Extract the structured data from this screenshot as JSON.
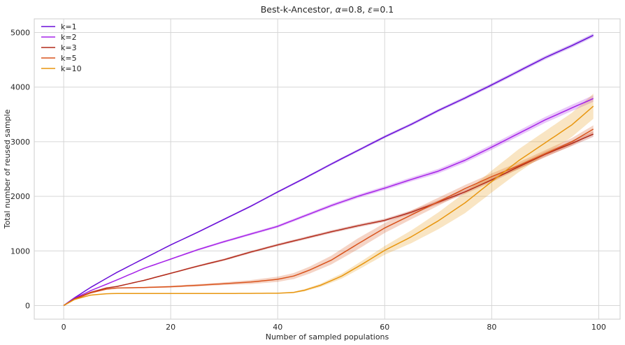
{
  "chart_data": {
    "type": "line",
    "title": "Best-k-Ancestor, α=0.8, ε=0.1",
    "title_parts": {
      "prefix": "Best-k-Ancestor, ",
      "alpha_symbol": "α",
      "alpha_value": "=0.8, ",
      "eps_symbol": "ε",
      "eps_value": "=0.1"
    },
    "xlabel": "Number of sampled populations",
    "ylabel": "Total number of reused sample",
    "xlim": [
      -5.5,
      104
    ],
    "ylim": [
      -250,
      5250
    ],
    "xticks": [
      0,
      20,
      40,
      60,
      80,
      100
    ],
    "yticks": [
      0,
      1000,
      2000,
      3000,
      4000,
      5000
    ],
    "grid": true,
    "legend_position": "top-left",
    "series": [
      {
        "name": "k=1",
        "color": "#6a0fd8",
        "points": [
          [
            0,
            0
          ],
          [
            2,
            140
          ],
          [
            5,
            330
          ],
          [
            10,
            610
          ],
          [
            15,
            860
          ],
          [
            20,
            1110
          ],
          [
            25,
            1340
          ],
          [
            30,
            1580
          ],
          [
            35,
            1820
          ],
          [
            40,
            2080
          ],
          [
            45,
            2330
          ],
          [
            50,
            2590
          ],
          [
            55,
            2840
          ],
          [
            60,
            3090
          ],
          [
            65,
            3320
          ],
          [
            70,
            3570
          ],
          [
            75,
            3800
          ],
          [
            80,
            4040
          ],
          [
            85,
            4290
          ],
          [
            90,
            4540
          ],
          [
            95,
            4760
          ],
          [
            99,
            4950
          ]
        ],
        "band": [
          [
            0,
            0
          ],
          [
            30,
            15
          ],
          [
            60,
            25
          ],
          [
            99,
            35
          ]
        ]
      },
      {
        "name": "k=2",
        "color": "#a623e8",
        "points": [
          [
            0,
            0
          ],
          [
            2,
            130
          ],
          [
            5,
            270
          ],
          [
            10,
            470
          ],
          [
            15,
            680
          ],
          [
            20,
            850
          ],
          [
            25,
            1020
          ],
          [
            30,
            1170
          ],
          [
            35,
            1310
          ],
          [
            40,
            1450
          ],
          [
            45,
            1640
          ],
          [
            50,
            1830
          ],
          [
            55,
            2000
          ],
          [
            60,
            2150
          ],
          [
            65,
            2310
          ],
          [
            70,
            2460
          ],
          [
            75,
            2660
          ],
          [
            80,
            2900
          ],
          [
            85,
            3150
          ],
          [
            90,
            3400
          ],
          [
            95,
            3620
          ],
          [
            99,
            3790
          ]
        ],
        "band": [
          [
            0,
            0
          ],
          [
            30,
            20
          ],
          [
            60,
            35
          ],
          [
            99,
            60
          ]
        ]
      },
      {
        "name": "k=3",
        "color": "#b22a1a",
        "points": [
          [
            0,
            0
          ],
          [
            2,
            120
          ],
          [
            5,
            240
          ],
          [
            8,
            320
          ],
          [
            10,
            350
          ],
          [
            15,
            460
          ],
          [
            20,
            590
          ],
          [
            25,
            720
          ],
          [
            30,
            840
          ],
          [
            35,
            980
          ],
          [
            40,
            1110
          ],
          [
            45,
            1230
          ],
          [
            50,
            1350
          ],
          [
            55,
            1460
          ],
          [
            60,
            1560
          ],
          [
            65,
            1710
          ],
          [
            70,
            1890
          ],
          [
            75,
            2080
          ],
          [
            80,
            2300
          ],
          [
            85,
            2540
          ],
          [
            90,
            2770
          ],
          [
            95,
            2970
          ],
          [
            99,
            3140
          ]
        ],
        "band": [
          [
            0,
            0
          ],
          [
            30,
            20
          ],
          [
            60,
            30
          ],
          [
            99,
            50
          ]
        ]
      },
      {
        "name": "k=5",
        "color": "#d9531c",
        "points": [
          [
            0,
            0
          ],
          [
            2,
            110
          ],
          [
            5,
            230
          ],
          [
            8,
            300
          ],
          [
            10,
            320
          ],
          [
            15,
            330
          ],
          [
            20,
            345
          ],
          [
            25,
            370
          ],
          [
            30,
            400
          ],
          [
            35,
            430
          ],
          [
            40,
            480
          ],
          [
            43,
            540
          ],
          [
            46,
            650
          ],
          [
            50,
            830
          ],
          [
            55,
            1130
          ],
          [
            60,
            1420
          ],
          [
            65,
            1660
          ],
          [
            70,
            1900
          ],
          [
            75,
            2140
          ],
          [
            80,
            2360
          ],
          [
            85,
            2560
          ],
          [
            90,
            2780
          ],
          [
            95,
            3000
          ],
          [
            99,
            3230
          ]
        ],
        "band": [
          [
            0,
            0
          ],
          [
            30,
            25
          ],
          [
            45,
            60
          ],
          [
            55,
            100
          ],
          [
            65,
            80
          ],
          [
            80,
            60
          ],
          [
            99,
            70
          ]
        ]
      },
      {
        "name": "k=10",
        "color": "#e8960f",
        "points": [
          [
            0,
            0
          ],
          [
            2,
            110
          ],
          [
            5,
            190
          ],
          [
            8,
            215
          ],
          [
            10,
            220
          ],
          [
            20,
            220
          ],
          [
            30,
            220
          ],
          [
            40,
            225
          ],
          [
            43,
            240
          ],
          [
            45,
            280
          ],
          [
            48,
            370
          ],
          [
            52,
            540
          ],
          [
            56,
            770
          ],
          [
            60,
            1010
          ],
          [
            65,
            1260
          ],
          [
            70,
            1550
          ],
          [
            75,
            1880
          ],
          [
            80,
            2270
          ],
          [
            85,
            2650
          ],
          [
            90,
            2980
          ],
          [
            95,
            3310
          ],
          [
            99,
            3650
          ]
        ],
        "band": [
          [
            0,
            0
          ],
          [
            40,
            5
          ],
          [
            48,
            30
          ],
          [
            60,
            80
          ],
          [
            75,
            190
          ],
          [
            85,
            210
          ],
          [
            95,
            220
          ],
          [
            99,
            230
          ]
        ]
      }
    ]
  }
}
